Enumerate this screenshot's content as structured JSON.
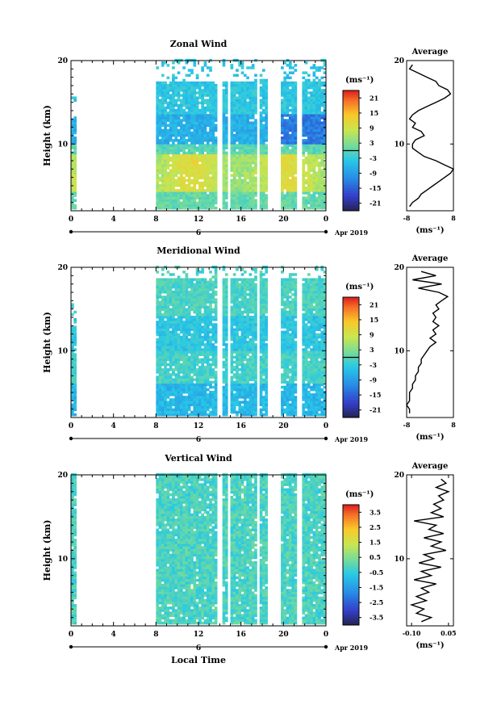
{
  "chart_data": [
    {
      "type": "heatmap",
      "title": "Zonal Wind",
      "ylabel": "Height (km)",
      "xlabel": "",
      "x_ticks": [
        "0",
        "4",
        "8",
        "12",
        "16",
        "20",
        "0"
      ],
      "y_ticks": [
        "20",
        "10"
      ],
      "xlim": [
        0,
        24
      ],
      "ylim": [
        2,
        20
      ],
      "date_day": "6",
      "date_label": "Apr 2019",
      "colorbar": {
        "unit": "(ms⁻¹)",
        "ticks": [
          "21",
          "15",
          "9",
          "3",
          "-3",
          "-9",
          "-15",
          "-21"
        ],
        "range": [
          -24,
          24
        ]
      },
      "data_coverage": {
        "early_column": [
          0,
          0.5
        ],
        "main_block": [
          8,
          24
        ],
        "gaps": [
          [
            13.7,
            14.1
          ],
          [
            14.6,
            14.9
          ],
          [
            17.4,
            17.7
          ],
          [
            18.3,
            19.6
          ],
          [
            21.2,
            21.6
          ]
        ],
        "height_top": 17.5
      },
      "profile": {
        "title": "Average",
        "xlabel": "(ms⁻¹)",
        "x_ticks": [
          "-8",
          "8"
        ],
        "xlim": [
          -8,
          8
        ],
        "y_ticks": [
          "20",
          "10"
        ],
        "points": [
          [
            -6,
            19.5
          ],
          [
            -7,
            19
          ],
          [
            -4,
            18.5
          ],
          [
            -1,
            18
          ],
          [
            2,
            17.5
          ],
          [
            3,
            17
          ],
          [
            6,
            16.5
          ],
          [
            7,
            16
          ],
          [
            5,
            15.5
          ],
          [
            2,
            15
          ],
          [
            -1,
            14.5
          ],
          [
            -4,
            14
          ],
          [
            -6,
            13.5
          ],
          [
            -7,
            13
          ],
          [
            -5,
            12.5
          ],
          [
            -6,
            12
          ],
          [
            -3,
            11.5
          ],
          [
            -2,
            11
          ],
          [
            -5,
            10.5
          ],
          [
            -6,
            10
          ],
          [
            -6,
            9.5
          ],
          [
            -4,
            9
          ],
          [
            -2,
            8.5
          ],
          [
            2,
            8
          ],
          [
            5,
            7.5
          ],
          [
            8,
            7
          ],
          [
            7,
            6.5
          ],
          [
            5,
            6
          ],
          [
            3,
            5.5
          ],
          [
            1,
            5
          ],
          [
            -1,
            4.5
          ],
          [
            -3,
            4
          ],
          [
            -4,
            3.5
          ],
          [
            -6,
            3
          ],
          [
            -7,
            2.5
          ]
        ]
      }
    },
    {
      "type": "heatmap",
      "title": "Meridional Wind",
      "ylabel": "Height (km)",
      "xlabel": "",
      "x_ticks": [
        "0",
        "4",
        "8",
        "12",
        "16",
        "20",
        "0"
      ],
      "y_ticks": [
        "20",
        "10"
      ],
      "xlim": [
        0,
        24
      ],
      "ylim": [
        2,
        20
      ],
      "date_day": "6",
      "date_label": "Apr 2019",
      "colorbar": {
        "unit": "(ms⁻¹)",
        "ticks": [
          "21",
          "15",
          "9",
          "3",
          "-3",
          "-9",
          "-15",
          "-21"
        ],
        "range": [
          -24,
          24
        ]
      },
      "data_coverage": {
        "early_column": [
          0,
          0.5
        ],
        "main_block": [
          8,
          24
        ],
        "gaps": [
          [
            13.7,
            14.1
          ],
          [
            14.6,
            14.9
          ],
          [
            17.4,
            17.7
          ],
          [
            18.3,
            19.6
          ],
          [
            21.2,
            21.6
          ]
        ],
        "height_top": 18.5
      },
      "profile": {
        "title": "Average",
        "xlabel": "(ms⁻¹)",
        "x_ticks": [
          "-8",
          "8"
        ],
        "xlim": [
          -8,
          8
        ],
        "y_ticks": [
          "20",
          "10"
        ],
        "points": [
          [
            -3,
            19.5
          ],
          [
            2,
            19
          ],
          [
            -6,
            18.5
          ],
          [
            4,
            18
          ],
          [
            -4,
            17.5
          ],
          [
            3,
            17
          ],
          [
            6,
            16.5
          ],
          [
            4,
            16
          ],
          [
            2,
            15.5
          ],
          [
            3,
            15
          ],
          [
            1,
            14.5
          ],
          [
            2,
            14
          ],
          [
            1,
            13.5
          ],
          [
            3,
            13
          ],
          [
            1,
            12.5
          ],
          [
            2,
            12
          ],
          [
            0,
            11.5
          ],
          [
            2,
            11
          ],
          [
            0,
            10.5
          ],
          [
            -1,
            10
          ],
          [
            -2,
            9.5
          ],
          [
            -3,
            9
          ],
          [
            -3,
            8.5
          ],
          [
            -4,
            8
          ],
          [
            -4,
            7.5
          ],
          [
            -5,
            7
          ],
          [
            -5,
            6.5
          ],
          [
            -6,
            6
          ],
          [
            -6,
            5.5
          ],
          [
            -7,
            5
          ],
          [
            -7,
            4.5
          ],
          [
            -7,
            4
          ],
          [
            -8,
            3.5
          ],
          [
            -7,
            3
          ],
          [
            -7,
            2.5
          ]
        ]
      }
    },
    {
      "type": "heatmap",
      "title": "Vertical Wind",
      "ylabel": "Height (km)",
      "xlabel": "Local Time",
      "x_ticks": [
        "0",
        "4",
        "8",
        "12",
        "16",
        "20",
        "0"
      ],
      "y_ticks": [
        "20",
        "10"
      ],
      "xlim": [
        0,
        24
      ],
      "ylim": [
        2,
        20
      ],
      "date_day": "6",
      "date_label": "Apr 2019",
      "colorbar": {
        "unit": "(ms⁻¹)",
        "ticks": [
          "3.5",
          "2.5",
          "1.5",
          "0.5",
          "-0.5",
          "-1.5",
          "-2.5",
          "-3.5"
        ],
        "range": [
          -4,
          4
        ]
      },
      "data_coverage": {
        "early_column": [
          0,
          0.5
        ],
        "main_block": [
          8,
          24
        ],
        "gaps": [
          [
            13.7,
            14.1
          ],
          [
            14.6,
            14.9
          ],
          [
            17.4,
            17.7
          ],
          [
            18.3,
            19.6
          ],
          [
            21.2,
            21.6
          ]
        ],
        "height_top": 20
      },
      "profile": {
        "title": "Average",
        "xlabel": "(ms⁻¹)",
        "x_ticks": [
          "-0.10",
          "0.05"
        ],
        "xlim": [
          -0.12,
          0.07
        ],
        "y_ticks": [
          "20",
          "10"
        ],
        "points": [
          [
            0.02,
            19.5
          ],
          [
            0.04,
            19
          ],
          [
            0.0,
            18.5
          ],
          [
            0.05,
            18
          ],
          [
            0.01,
            17.5
          ],
          [
            0.03,
            17
          ],
          [
            -0.01,
            16.5
          ],
          [
            0.02,
            16
          ],
          [
            -0.02,
            15.5
          ],
          [
            0.03,
            15
          ],
          [
            -0.09,
            14.5
          ],
          [
            0.0,
            14
          ],
          [
            -0.03,
            13.5
          ],
          [
            0.03,
            13
          ],
          [
            -0.05,
            12.5
          ],
          [
            0.02,
            12
          ],
          [
            -0.02,
            11.5
          ],
          [
            0.04,
            11
          ],
          [
            -0.05,
            10.5
          ],
          [
            -0.01,
            10
          ],
          [
            -0.07,
            9.5
          ],
          [
            0.02,
            9
          ],
          [
            -0.06,
            8.5
          ],
          [
            -0.02,
            8
          ],
          [
            -0.09,
            7.5
          ],
          [
            0.0,
            7
          ],
          [
            -0.06,
            6.5
          ],
          [
            -0.03,
            6
          ],
          [
            -0.08,
            5.5
          ],
          [
            -0.04,
            5
          ],
          [
            -0.1,
            4.5
          ],
          [
            -0.05,
            4
          ],
          [
            -0.08,
            3.5
          ],
          [
            -0.02,
            3
          ],
          [
            -0.06,
            2.5
          ]
        ]
      }
    }
  ]
}
